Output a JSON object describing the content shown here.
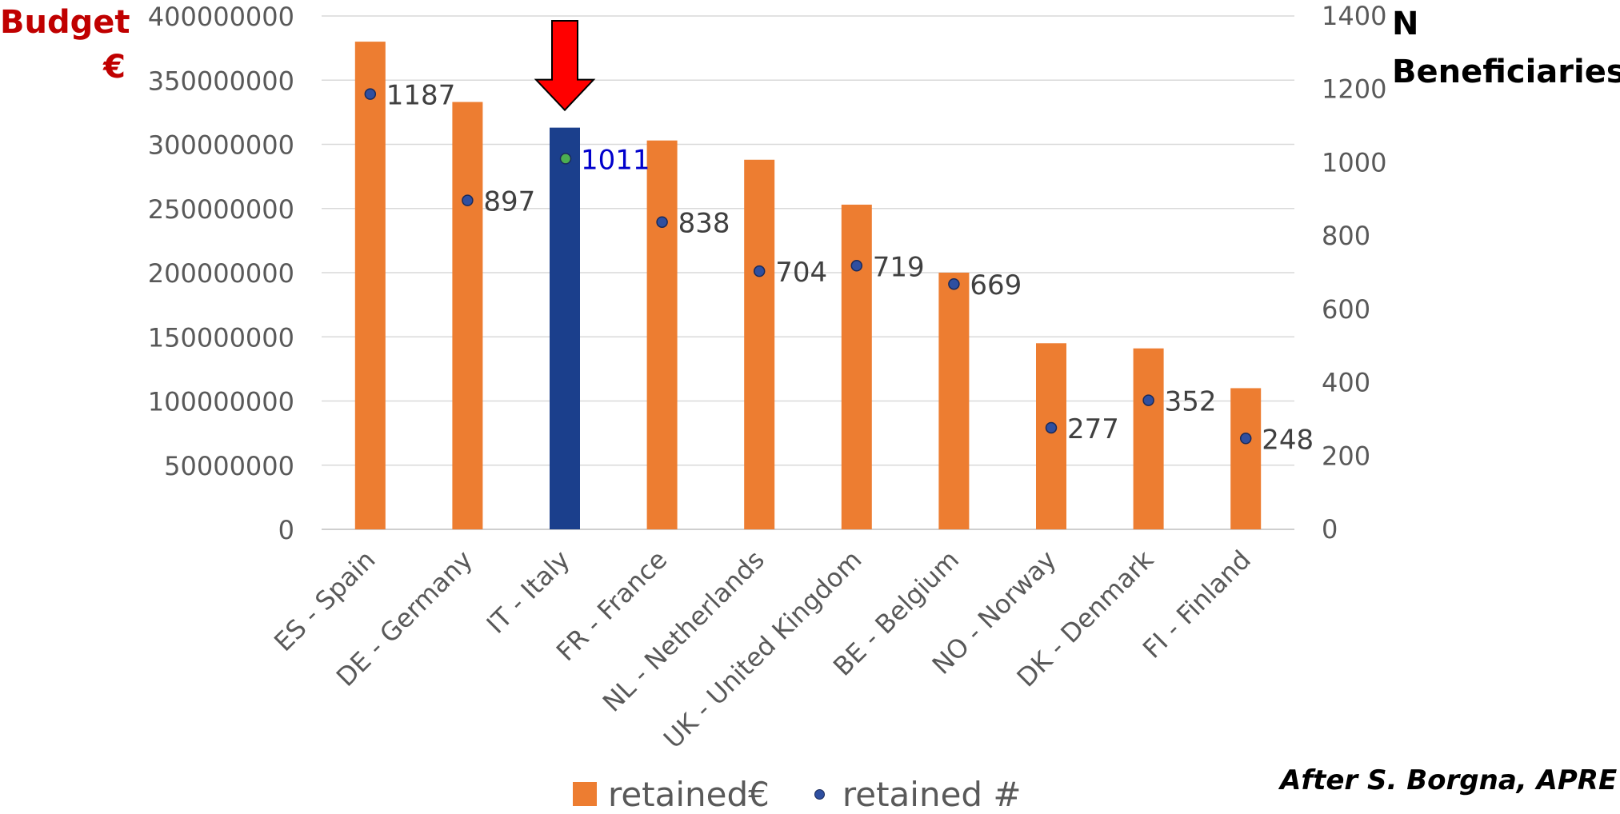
{
  "colors": {
    "bar": "#ed7d31",
    "highlight_bar": "#1b3f8c",
    "dot": "#2f4fa0",
    "highlight_dot": "#4caf50",
    "highlight_label": "#0000cc",
    "arrow": "#ff0000",
    "left_axis_title": "#c00000"
  },
  "axis_titles": {
    "left": "Budget €",
    "right": "N Beneficiaries"
  },
  "legend": {
    "bar_label": "retained€",
    "dot_label": "retained #"
  },
  "credit": "After S. Borgna, APRE",
  "chart_data": {
    "type": "bar",
    "categories": [
      "ES - Spain",
      "DE - Germany",
      "IT - Italy",
      "FR - France",
      "NL - Netherlands",
      "UK - United Kingdom",
      "BE - Belgium",
      "NO - Norway",
      "DK - Denmark",
      "FI - Finland"
    ],
    "series": [
      {
        "name": "retained€",
        "type": "bar",
        "axis": "left",
        "values": [
          380000000,
          333000000,
          313000000,
          303000000,
          288000000,
          253000000,
          200000000,
          145000000,
          141000000,
          110000000
        ]
      },
      {
        "name": "retained #",
        "type": "scatter",
        "axis": "right",
        "values": [
          1187,
          897,
          1011,
          838,
          704,
          719,
          669,
          277,
          352,
          248
        ],
        "labels": [
          "1187",
          "897",
          "1011",
          "838",
          "704",
          "719",
          "669",
          "277",
          "352",
          "248"
        ]
      }
    ],
    "left_axis": {
      "ylim": [
        0,
        400000000
      ],
      "ticks": [
        "0",
        "50000000",
        "100000000",
        "150000000",
        "200000000",
        "250000000",
        "300000000",
        "350000000",
        "400000000"
      ]
    },
    "right_axis": {
      "ylim": [
        0,
        1400
      ],
      "ticks": [
        "0",
        "200",
        "400",
        "600",
        "800",
        "1000",
        "1200",
        "1400"
      ]
    },
    "highlight_category": "IT - Italy",
    "grid": true,
    "legend_position": "bottom"
  }
}
